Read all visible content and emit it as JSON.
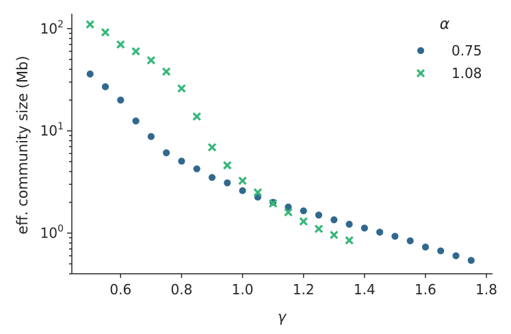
{
  "chart_data": {
    "type": "scatter",
    "title": "",
    "xlabel": "γ",
    "ylabel": "eff. community size (Mb)",
    "xlim": [
      0.44,
      1.82
    ],
    "ylim": [
      0.4,
      140
    ],
    "yscale": "log",
    "grid": false,
    "legend": {
      "title": "α",
      "placement": "top-right"
    },
    "xticks": [
      {
        "value": 0.6,
        "label": "0.6"
      },
      {
        "value": 0.8,
        "label": "0.8"
      },
      {
        "value": 1.0,
        "label": "1.0"
      },
      {
        "value": 1.2,
        "label": "1.2"
      },
      {
        "value": 1.4,
        "label": "1.4"
      },
      {
        "value": 1.6,
        "label": "1.6"
      },
      {
        "value": 1.8,
        "label": "1.8"
      }
    ],
    "yticks": [
      {
        "value": 1,
        "base": "10",
        "exp": "0"
      },
      {
        "value": 10,
        "base": "10",
        "exp": "1"
      },
      {
        "value": 100,
        "base": "10",
        "exp": "2"
      }
    ],
    "series": [
      {
        "name": "0.75",
        "marker": "circle",
        "color": "#31688e",
        "x": [
          0.5,
          0.55,
          0.6,
          0.65,
          0.7,
          0.75,
          0.8,
          0.85,
          0.9,
          0.95,
          1.0,
          1.05,
          1.1,
          1.15,
          1.2,
          1.25,
          1.3,
          1.35,
          1.4,
          1.45,
          1.5,
          1.55,
          1.6,
          1.65,
          1.7,
          1.75
        ],
        "y": [
          36,
          27,
          20,
          12.5,
          8.8,
          6.1,
          5.05,
          4.25,
          3.5,
          3.1,
          2.6,
          2.25,
          2.0,
          1.8,
          1.65,
          1.5,
          1.35,
          1.22,
          1.12,
          1.02,
          0.93,
          0.84,
          0.73,
          0.67,
          0.6,
          0.54
        ]
      },
      {
        "name": "1.08",
        "marker": "x",
        "color": "#35b779",
        "x": [
          0.5,
          0.55,
          0.6,
          0.65,
          0.7,
          0.75,
          0.8,
          0.85,
          0.9,
          0.95,
          1.0,
          1.05,
          1.1,
          1.15,
          1.2,
          1.25,
          1.3,
          1.35
        ],
        "y": [
          110,
          92,
          70,
          60,
          49,
          38,
          26,
          13.8,
          6.9,
          4.6,
          3.25,
          2.5,
          1.95,
          1.6,
          1.3,
          1.1,
          0.96,
          0.85
        ]
      }
    ]
  }
}
